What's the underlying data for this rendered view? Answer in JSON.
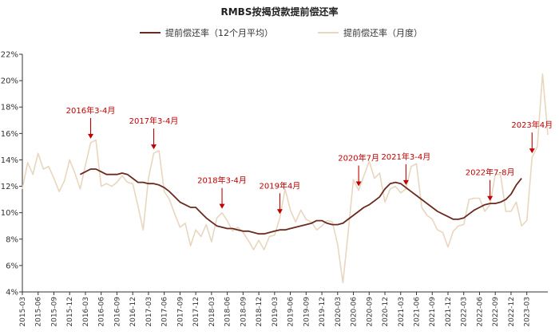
{
  "chart_data": {
    "type": "line",
    "title": "RMBS按揭贷款提前偿还率",
    "xlabel": "",
    "ylabel": "",
    "ylim": [
      4,
      22
    ],
    "yticks": [
      "4%",
      "6%",
      "8%",
      "10%",
      "12%",
      "14%",
      "16%",
      "18%",
      "20%",
      "22%"
    ],
    "x_tick_labels": [
      "2015-03",
      "2015-06",
      "2015-09",
      "2015-12",
      "2016-03",
      "2016-06",
      "2016-09",
      "2016-12",
      "2017-03",
      "2017-06",
      "2017-09",
      "2017-12",
      "2018-03",
      "2018-06",
      "2018-09",
      "2018-12",
      "2019-03",
      "2019-06",
      "2019-09",
      "2019-12",
      "2020-03",
      "2020-06",
      "2020-09",
      "2020-12",
      "2021-03",
      "2021-06",
      "2021-09",
      "2021-12",
      "2022-03",
      "2022-06",
      "2022-09",
      "2022-12",
      "2023-03"
    ],
    "x_start": "2015-03",
    "colors": {
      "ma12": "#6b2a1e",
      "monthly": "#e9d6bf",
      "annotation": "#c00000"
    },
    "series": [
      {
        "name": "提前偿还率（月度）",
        "values": [
          11.8,
          13.8,
          12.9,
          14.5,
          13.3,
          13.5,
          12.6,
          11.6,
          12.4,
          14.0,
          13.0,
          11.8,
          13.6,
          15.3,
          15.5,
          12.0,
          12.2,
          12.0,
          12.3,
          12.8,
          12.3,
          12.2,
          10.5,
          8.7,
          12.6,
          14.5,
          14.7,
          11.6,
          11.0,
          9.9,
          8.9,
          9.2,
          7.5,
          8.7,
          8.2,
          9.1,
          7.8,
          9.6,
          10.0,
          9.4,
          8.6,
          8.9,
          8.5,
          7.9,
          7.2,
          7.9,
          7.2,
          8.2,
          8.3,
          9.6,
          11.8,
          10.2,
          9.3,
          10.2,
          9.5,
          9.3,
          8.7,
          9.0,
          9.4,
          9.3,
          7.6,
          4.7,
          8.5,
          12.5,
          11.7,
          12.8,
          13.9,
          12.6,
          13.0,
          10.8,
          11.8,
          12.0,
          11.5,
          11.8,
          13.5,
          13.7,
          10.4,
          9.8,
          9.5,
          8.7,
          8.5,
          7.4,
          8.6,
          9.0,
          9.1,
          11.0,
          11.1,
          11.1,
          10.1,
          10.6,
          12.9,
          12.9,
          10.1,
          10.1,
          10.8,
          9.0,
          9.4,
          14.2,
          15.0,
          20.5,
          15.9
        ],
        "style": "line"
      },
      {
        "name": "提前偿还率（12个月平均）",
        "x_start": "2016-02",
        "values": [
          12.9,
          13.1,
          13.3,
          13.3,
          13.1,
          12.9,
          12.9,
          12.9,
          13.0,
          12.9,
          12.6,
          12.3,
          12.3,
          12.2,
          12.2,
          12.1,
          11.9,
          11.6,
          11.2,
          10.8,
          10.6,
          10.4,
          10.4,
          10.0,
          9.6,
          9.3,
          9.0,
          8.9,
          8.8,
          8.8,
          8.7,
          8.6,
          8.6,
          8.5,
          8.4,
          8.4,
          8.5,
          8.6,
          8.7,
          8.7,
          8.8,
          8.9,
          9.0,
          9.1,
          9.2,
          9.4,
          9.4,
          9.2,
          9.1,
          9.1,
          9.2,
          9.5,
          9.8,
          10.1,
          10.4,
          10.6,
          10.9,
          11.2,
          11.8,
          12.2,
          12.3,
          12.2,
          11.9,
          11.6,
          11.3,
          11.0,
          10.7,
          10.4,
          10.1,
          9.9,
          9.7,
          9.5,
          9.5,
          9.6,
          9.9,
          10.2,
          10.4,
          10.6,
          10.7,
          10.7,
          10.8,
          11.0,
          11.4,
          12.1,
          12.6
        ],
        "style": "line"
      }
    ],
    "annotations": [
      {
        "text": "2016年3-4月",
        "date": "2016-04"
      },
      {
        "text": "2017年3-4月",
        "date": "2017-04"
      },
      {
        "text": "2018年3-4月",
        "date": "2018-05"
      },
      {
        "text": "2019年4月",
        "date": "2019-04"
      },
      {
        "text": "2020年7月",
        "date": "2020-07"
      },
      {
        "text": "2021年3-4月",
        "date": "2021-04"
      },
      {
        "text": "2022年7-8月",
        "date": "2022-08"
      },
      {
        "text": "2023年4月",
        "date": "2023-04"
      }
    ],
    "grid": false,
    "legend_position": "top"
  }
}
